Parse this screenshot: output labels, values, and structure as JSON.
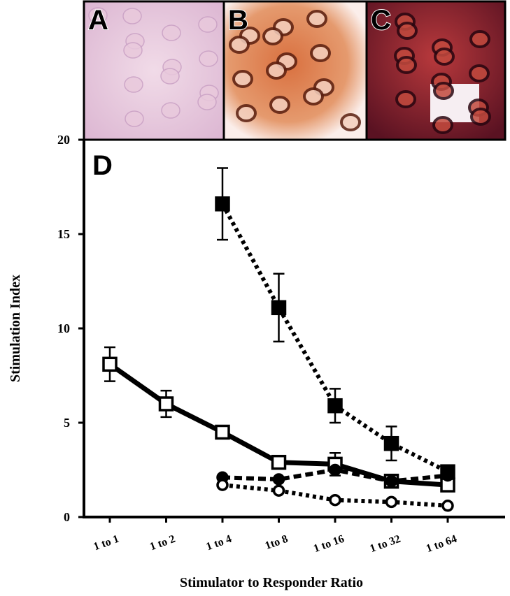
{
  "panels": {
    "labels": [
      "A",
      "B",
      "C"
    ]
  },
  "chart_data": {
    "type": "line",
    "panel_label": "D",
    "x_label": "Stimulator to Responder Ratio",
    "y_label": "Stimulation Index",
    "categories": [
      "1 to 1",
      "1 to 2",
      "1 to 4",
      "1to 8",
      "1 to 16",
      "1 to 32",
      "1 to 64"
    ],
    "ylim": [
      0,
      20
    ],
    "yticks": [
      0,
      5,
      10,
      15,
      20
    ],
    "series": [
      {
        "color": "#000000",
        "marker": "square-filled",
        "line_style": "dotted",
        "values": [
          null,
          null,
          16.6,
          11.1,
          5.9,
          3.9,
          2.4
        ],
        "errors": [
          null,
          null,
          1.9,
          1.8,
          0.9,
          0.9,
          null
        ]
      },
      {
        "color": "#000000",
        "marker": "square-open",
        "line_style": "solid",
        "values": [
          8.1,
          6.0,
          4.5,
          2.9,
          2.8,
          1.9,
          1.7
        ],
        "errors": [
          0.9,
          0.7,
          null,
          null,
          0.6,
          null,
          null
        ]
      },
      {
        "color": "#000000",
        "marker": "circle-filled",
        "line_style": "dashed",
        "values": [
          null,
          null,
          2.1,
          2.0,
          2.5,
          1.9,
          2.2
        ],
        "errors": [
          null,
          null,
          null,
          null,
          null,
          null,
          null
        ]
      },
      {
        "color": "#000000",
        "marker": "circle-open",
        "line_style": "dotted",
        "values": [
          null,
          null,
          1.7,
          1.4,
          0.9,
          0.8,
          0.6
        ],
        "errors": [
          null,
          null,
          null,
          null,
          null,
          null,
          null
        ]
      }
    ]
  }
}
